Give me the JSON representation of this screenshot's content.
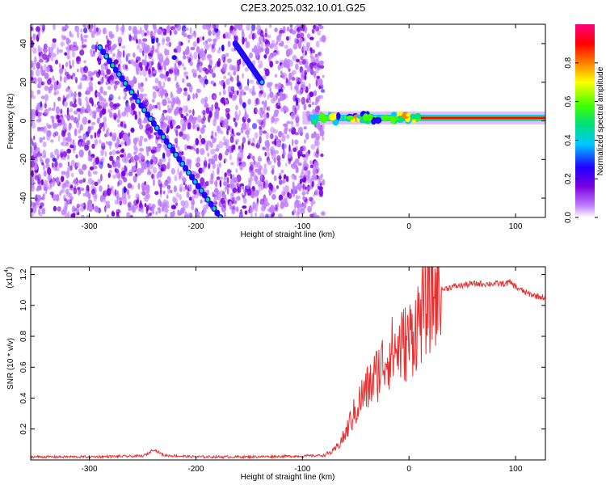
{
  "figure": {
    "title": "C2E3.2025.032.10.01.G25"
  },
  "chart_data": [
    {
      "type": "heatmap",
      "name": "spectrogram",
      "xlabel": "Height of straight line (km)",
      "ylabel": "Frequency (Hz)",
      "xlim": [
        -355,
        128
      ],
      "ylim": [
        -50,
        50
      ],
      "xticks": [
        -300,
        -200,
        -100,
        0,
        100
      ],
      "yticks": [
        -40,
        -20,
        0,
        20,
        40
      ],
      "colorbar": {
        "label": "Normalized spectral amplitude",
        "range": [
          0.0,
          1.0
        ],
        "ticks": [
          0.0,
          0.2,
          0.4,
          0.6,
          0.8
        ],
        "tick_labels": [
          "0.0",
          "0.2",
          "0.4",
          "0.6",
          "0.8"
        ],
        "colormap": [
          "#ffffff",
          "#c080ff",
          "#7a00e0",
          "#2000ff",
          "#00c8ff",
          "#00e080",
          "#40ff00",
          "#ffff00",
          "#ff8000",
          "#ff0000",
          "#ff0080"
        ]
      },
      "features": {
        "noise_region_x": [
          -355,
          -80
        ],
        "carrier_x": [
          -100,
          128
        ],
        "carrier_freq_hz": 1.5,
        "descending_lines": [
          {
            "x": [
              -290,
              -177
            ],
            "y": [
              38,
              -50
            ]
          },
          {
            "x": [
              -163,
              -138
            ],
            "y": [
              40,
              20
            ]
          }
        ]
      }
    },
    {
      "type": "line",
      "name": "snr",
      "xlabel": "Height of straight line (km)",
      "ylabel": "SNR (10 * v/v)",
      "exponent_label": "(x10",
      "exponent_power": "4",
      "exponent_close": ")",
      "xlim": [
        -355,
        128
      ],
      "ylim": [
        0,
        1.25
      ],
      "xticks": [
        -300,
        -200,
        -100,
        0,
        100
      ],
      "yticks": [
        0.2,
        0.4,
        0.6,
        0.8,
        1.0,
        1.2
      ],
      "ytick_labels": [
        "0.2",
        "0.4",
        "0.6",
        "0.8",
        "1.0",
        "1.2"
      ],
      "color": "#e83030",
      "series": [
        {
          "x": [
            -355,
            -300,
            -250,
            -245,
            -240,
            -235,
            -230,
            -200,
            -150,
            -100,
            -80,
            -70,
            -60,
            -55,
            -50,
            -45,
            -40,
            -35,
            -30,
            -25,
            -20,
            -15,
            -10,
            -5,
            0,
            5,
            10,
            15,
            20,
            25,
            30,
            40,
            50,
            60,
            70,
            80,
            90,
            95,
            100,
            105,
            110,
            115,
            120,
            128
          ],
          "y": [
            0.02,
            0.02,
            0.025,
            0.04,
            0.07,
            0.05,
            0.03,
            0.02,
            0.02,
            0.025,
            0.03,
            0.06,
            0.16,
            0.25,
            0.32,
            0.4,
            0.45,
            0.5,
            0.56,
            0.62,
            0.68,
            0.7,
            0.72,
            0.75,
            0.78,
            0.84,
            0.92,
            1.0,
            1.05,
            1.08,
            1.1,
            1.12,
            1.13,
            1.14,
            1.14,
            1.14,
            1.14,
            1.15,
            1.12,
            1.1,
            1.08,
            1.07,
            1.06,
            1.05
          ]
        }
      ]
    }
  ]
}
